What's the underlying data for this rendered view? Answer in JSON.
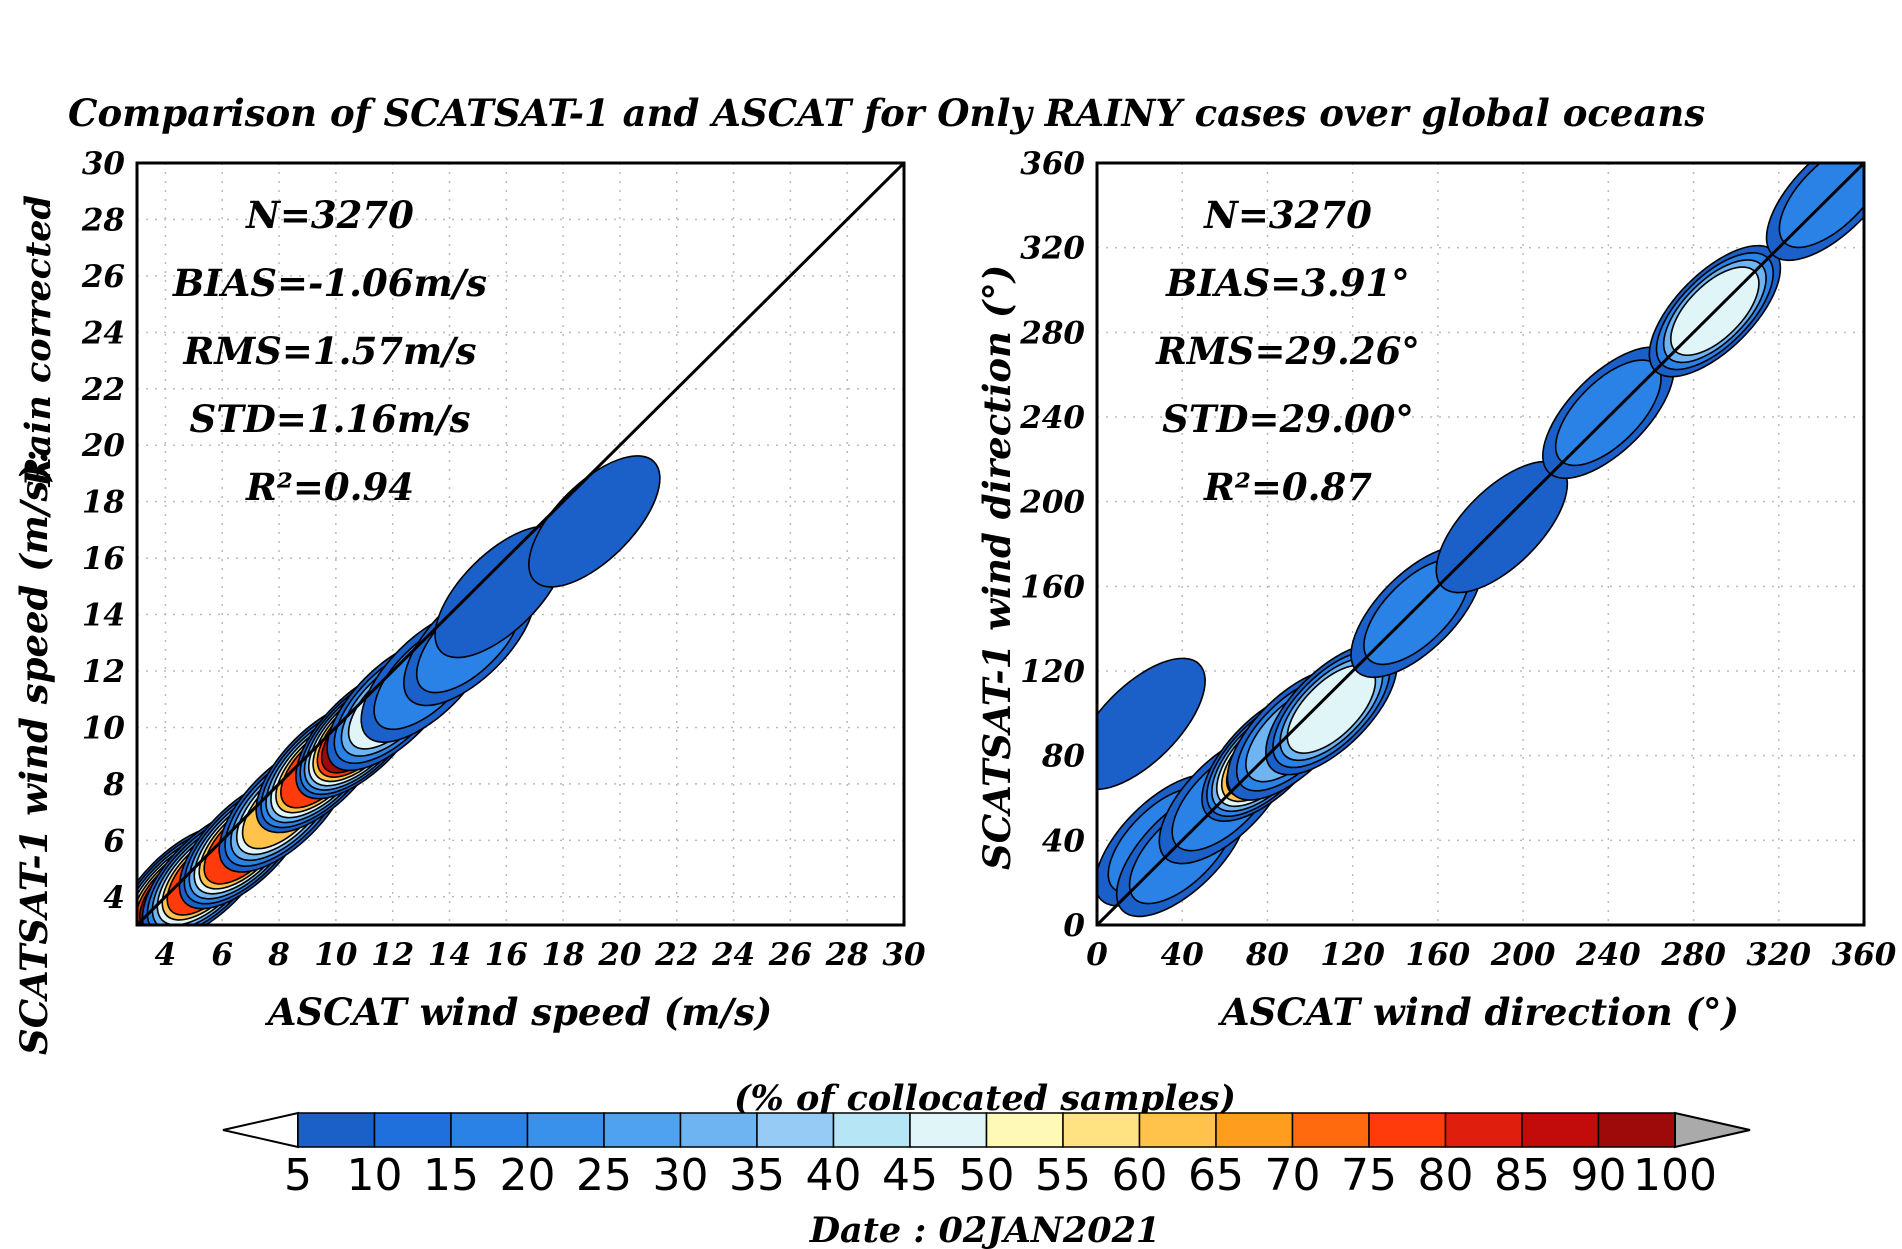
{
  "figure": {
    "title": "Comparison of SCATSAT-1 and ASCAT for Only RAINY cases over global oceans",
    "side_label": "Rain corrected",
    "date_text": "Date : 02JAN2021"
  },
  "chart_data": [
    {
      "type": "heatmap",
      "xlabel": "ASCAT wind speed (m/s)",
      "ylabel": "SCATSAT-1 wind speed (m/s):",
      "xlim": [
        3,
        30
      ],
      "ylim": [
        3,
        30
      ],
      "xticks": [
        4,
        6,
        8,
        10,
        12,
        14,
        16,
        18,
        20,
        22,
        24,
        26,
        28,
        30
      ],
      "yticks": [
        4,
        6,
        8,
        10,
        12,
        14,
        16,
        18,
        20,
        22,
        24,
        26,
        28,
        30
      ],
      "grid": true,
      "one_to_one_line": true,
      "stats": [
        "N=3270",
        "BIAS=-1.06m/s",
        "RMS=1.57m/s",
        "STD=1.16m/s",
        "R²=0.94"
      ],
      "density_cells": [
        {
          "x": 4.5,
          "y": 4.2,
          "value": 90
        },
        {
          "x": 5.5,
          "y": 4.8,
          "value": 75
        },
        {
          "x": 6.8,
          "y": 5.9,
          "value": 88
        },
        {
          "x": 8.2,
          "y": 7.2,
          "value": 72
        },
        {
          "x": 9.5,
          "y": 8.6,
          "value": 82
        },
        {
          "x": 10.9,
          "y": 9.8,
          "value": 92
        },
        {
          "x": 12.0,
          "y": 10.8,
          "value": 45
        },
        {
          "x": 13.2,
          "y": 11.8,
          "value": 20
        },
        {
          "x": 14.7,
          "y": 13.1,
          "value": 18
        },
        {
          "x": 15.8,
          "y": 14.8,
          "value": 12
        },
        {
          "x": 19.1,
          "y": 17.3,
          "value": 8
        }
      ]
    },
    {
      "type": "heatmap",
      "xlabel": "ASCAT wind direction (°)",
      "ylabel": "SCATSAT-1 wind direction (°)",
      "xlim": [
        0,
        360
      ],
      "ylim": [
        0,
        360
      ],
      "xticks": [
        0,
        40,
        80,
        120,
        160,
        200,
        240,
        280,
        320,
        360
      ],
      "yticks": [
        0,
        40,
        80,
        120,
        160,
        200,
        240,
        280,
        320,
        360
      ],
      "grid": true,
      "one_to_one_line": true,
      "stats": [
        "N=3270",
        "BIAS=3.91°",
        "RMS=29.26°",
        "STD=29.00°",
        "R²=0.87"
      ],
      "density_cells": [
        {
          "x": 20,
          "y": 95,
          "value": 10
        },
        {
          "x": 30,
          "y": 40,
          "value": 15
        },
        {
          "x": 40,
          "y": 35,
          "value": 18
        },
        {
          "x": 60,
          "y": 60,
          "value": 25
        },
        {
          "x": 80,
          "y": 80,
          "value": 85
        },
        {
          "x": 92,
          "y": 90,
          "value": 35
        },
        {
          "x": 110,
          "y": 102,
          "value": 55
        },
        {
          "x": 150,
          "y": 148,
          "value": 18
        },
        {
          "x": 190,
          "y": 188,
          "value": 12
        },
        {
          "x": 240,
          "y": 242,
          "value": 15
        },
        {
          "x": 290,
          "y": 290,
          "value": 45
        },
        {
          "x": 345,
          "y": 345,
          "value": 15
        }
      ]
    }
  ],
  "colorbar": {
    "title": "(% of collocated samples)",
    "labels": [
      "5",
      "10",
      "15",
      "20",
      "25",
      "30",
      "35",
      "40",
      "45",
      "50",
      "55",
      "60",
      "65",
      "70",
      "75",
      "80",
      "85",
      "90",
      "100"
    ],
    "colors": [
      "#1b5fc8",
      "#1f6fdc",
      "#2b82e6",
      "#3a91ec",
      "#4fa2f0",
      "#6eb4f3",
      "#96cbf6",
      "#b6e6f6",
      "#dff5f8",
      "#fff9b8",
      "#ffe383",
      "#ffc24a",
      "#ff9e1e",
      "#ff6a0e",
      "#ff3b0c",
      "#e01e0e",
      "#c20c0c",
      "#9e0a0a"
    ],
    "under_color": "#ffffff",
    "over_color": "#aaaaaa"
  }
}
